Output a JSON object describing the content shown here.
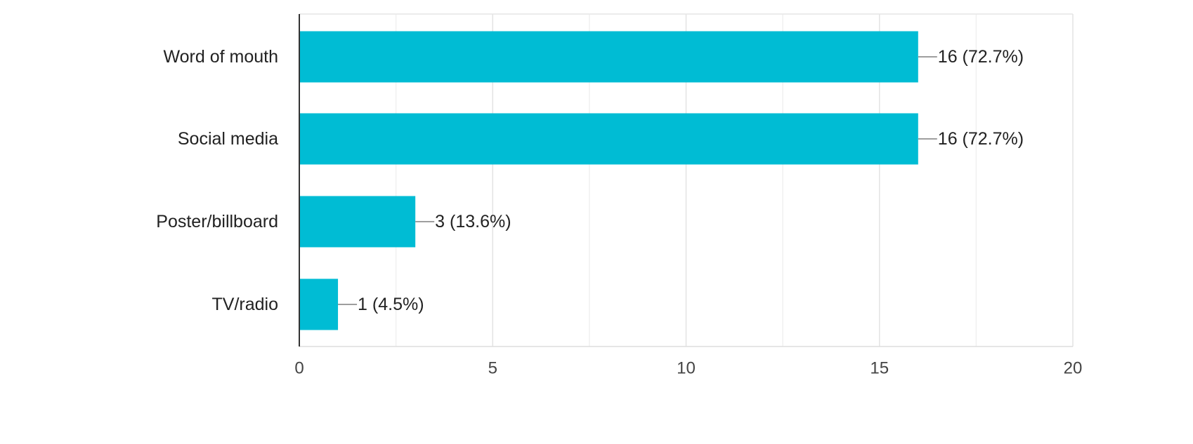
{
  "chart_data": {
    "type": "bar",
    "orientation": "horizontal",
    "categories": [
      "Word of mouth",
      "Social media",
      "Poster/billboard",
      "TV/radio"
    ],
    "values": [
      16,
      16,
      3,
      1
    ],
    "data_labels": [
      "16 (72.7%)",
      "16 (72.7%)",
      "3 (13.6%)",
      "1 (4.5%)"
    ],
    "xlim": [
      0,
      20
    ],
    "x_ticks": [
      0,
      5,
      10,
      15,
      20
    ],
    "x_tick_labels": [
      "0",
      "5",
      "10",
      "15",
      "20"
    ],
    "grid": true,
    "legend": "none",
    "bar_color": "#00bcd4",
    "title": "",
    "xlabel": "",
    "ylabel": ""
  }
}
